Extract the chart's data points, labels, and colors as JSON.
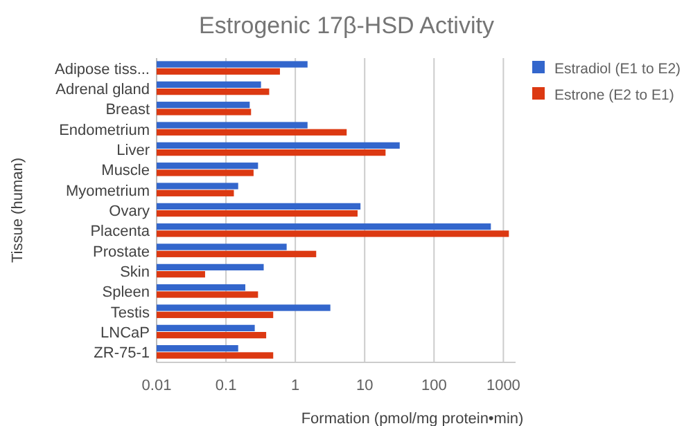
{
  "chart_data": {
    "type": "bar",
    "orientation": "horizontal",
    "log": "x",
    "title": "Estrogenic 17β-HSD Activity",
    "xlabel": "Formation (pmol/mg protein•min)",
    "ylabel": "Tissue (human)",
    "categories": [
      "Adipose tiss...",
      "Adrenal gland",
      "Breast",
      "Endometrium",
      "Liver",
      "Muscle",
      "Myometrium",
      "Ovary",
      "Placenta",
      "Prostate",
      "Skin",
      "Spleen",
      "Testis",
      "LNCaP",
      "ZR-75-1"
    ],
    "series": [
      {
        "name": "Estradiol (E1 to E2)",
        "color": "#3366cc",
        "values": [
          1.5,
          0.32,
          0.22,
          1.5,
          32,
          0.29,
          0.15,
          8.7,
          660,
          0.75,
          0.35,
          0.19,
          3.2,
          0.26,
          0.15
        ]
      },
      {
        "name": "Estrone (E2 to E1)",
        "color": "#dc3912",
        "values": [
          0.6,
          0.42,
          0.23,
          5.5,
          20,
          0.25,
          0.13,
          7.9,
          1200,
          2.0,
          0.05,
          0.29,
          0.48,
          0.38,
          0.48
        ]
      }
    ],
    "xlim": [
      0.01,
      1500
    ],
    "xticks": [
      0.01,
      0.1,
      1,
      10,
      100,
      1000
    ],
    "grid": "x",
    "legend": "right"
  }
}
